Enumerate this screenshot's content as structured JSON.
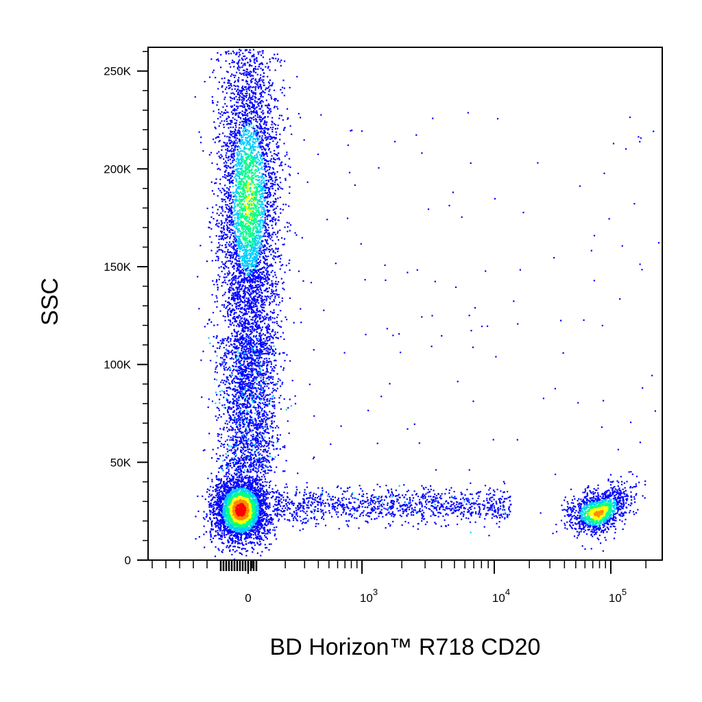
{
  "chart_data": {
    "type": "scatter",
    "style": "flow-cytometry pseudocolor density plot",
    "xlabel": "BD Horizon™ R718  CD20",
    "ylabel": "SSC",
    "x_scale": "biexponential",
    "y_scale": "linear",
    "ylim": [
      0,
      262144
    ],
    "y_ticks": [
      {
        "value": 0,
        "label": "0"
      },
      {
        "value": 50000,
        "label": "50K"
      },
      {
        "value": 100000,
        "label": "100K"
      },
      {
        "value": 150000,
        "label": "150K"
      },
      {
        "value": 200000,
        "label": "200K"
      },
      {
        "value": 250000,
        "label": "250K"
      }
    ],
    "x_ticks": [
      {
        "value": 0,
        "base": "0",
        "exp": ""
      },
      {
        "value": 1000,
        "base": "10",
        "exp": "3"
      },
      {
        "value": 10000,
        "base": "10",
        "exp": "4"
      },
      {
        "value": 100000,
        "base": "10",
        "exp": "5"
      }
    ],
    "density_colors": [
      "#0000ff",
      "#00ccff",
      "#00ff88",
      "#ffff00",
      "#ff8800",
      "#ff0000"
    ],
    "populations": [
      {
        "center_x": -10,
        "center_ssc": 180000,
        "spread_ssc": 45000,
        "peak": "green"
      },
      {
        "center_x": -10,
        "center_ssc": 25000,
        "spread_ssc": 8000,
        "peak": "red"
      },
      {
        "center_x": 70000,
        "center_ssc": 23000,
        "spread_ssc": 5000,
        "peak": "yellow"
      }
    ],
    "grid": false
  }
}
